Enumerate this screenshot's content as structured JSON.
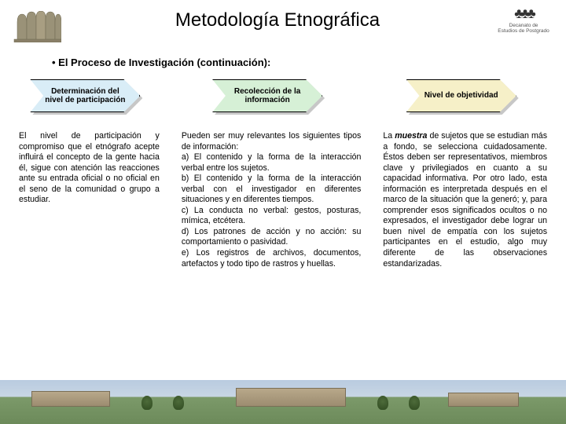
{
  "title": "Metodología Etnográfica",
  "subtitle": "• El Proceso de Investigación (continuación):",
  "logo_right": {
    "line1": "Decanato de",
    "line2": "Estudios de Postgrado"
  },
  "columns": [
    {
      "arrow_bg": "#d9edf7",
      "label": "Determinación del nivel de participación",
      "text": "El nivel de participación y compromiso que el etnógrafo acepte influirá el concepto de la gente hacia él, sigue con atención las reacciones ante su entrada oficial o no oficial en el seno de la comunidad o grupo a estudiar."
    },
    {
      "arrow_bg": "#d6f0d6",
      "label": "Recolección de la información",
      "text": "Pueden ser muy relevantes los siguientes tipos de información:\na) El contenido y la forma de la interacción verbal entre los sujetos.\nb) El contenido y la forma de la interacción verbal con el investigador en diferentes situaciones y en diferentes tiempos.\nc) La conducta no verbal: gestos, posturas, mímica, etcétera.\nd) Los patrones de acción y no acción: su comportamiento o pasividad.\ne) Los registros de archivos, documentos, artefactos y todo tipo de rastros y huellas."
    },
    {
      "arrow_bg": "#f6f0c8",
      "label": "Nivel de objetividad",
      "text_html": "La <b><i>muestra</i></b> de sujetos que se estudian más a fondo, se selecciona cuidadosamente. Éstos deben ser representativos, miembros clave y privilegiados en cuanto a su capacidad informativa. Por otro lado, esta información es interpretada después en el marco de la situación que la generó; y, para comprender esos significados ocultos o no expresados, el investigador debe lograr un buen nivel de empatía con los sujetos participantes en el estudio, algo muy diferente de las observaciones estandarizadas."
    }
  ]
}
